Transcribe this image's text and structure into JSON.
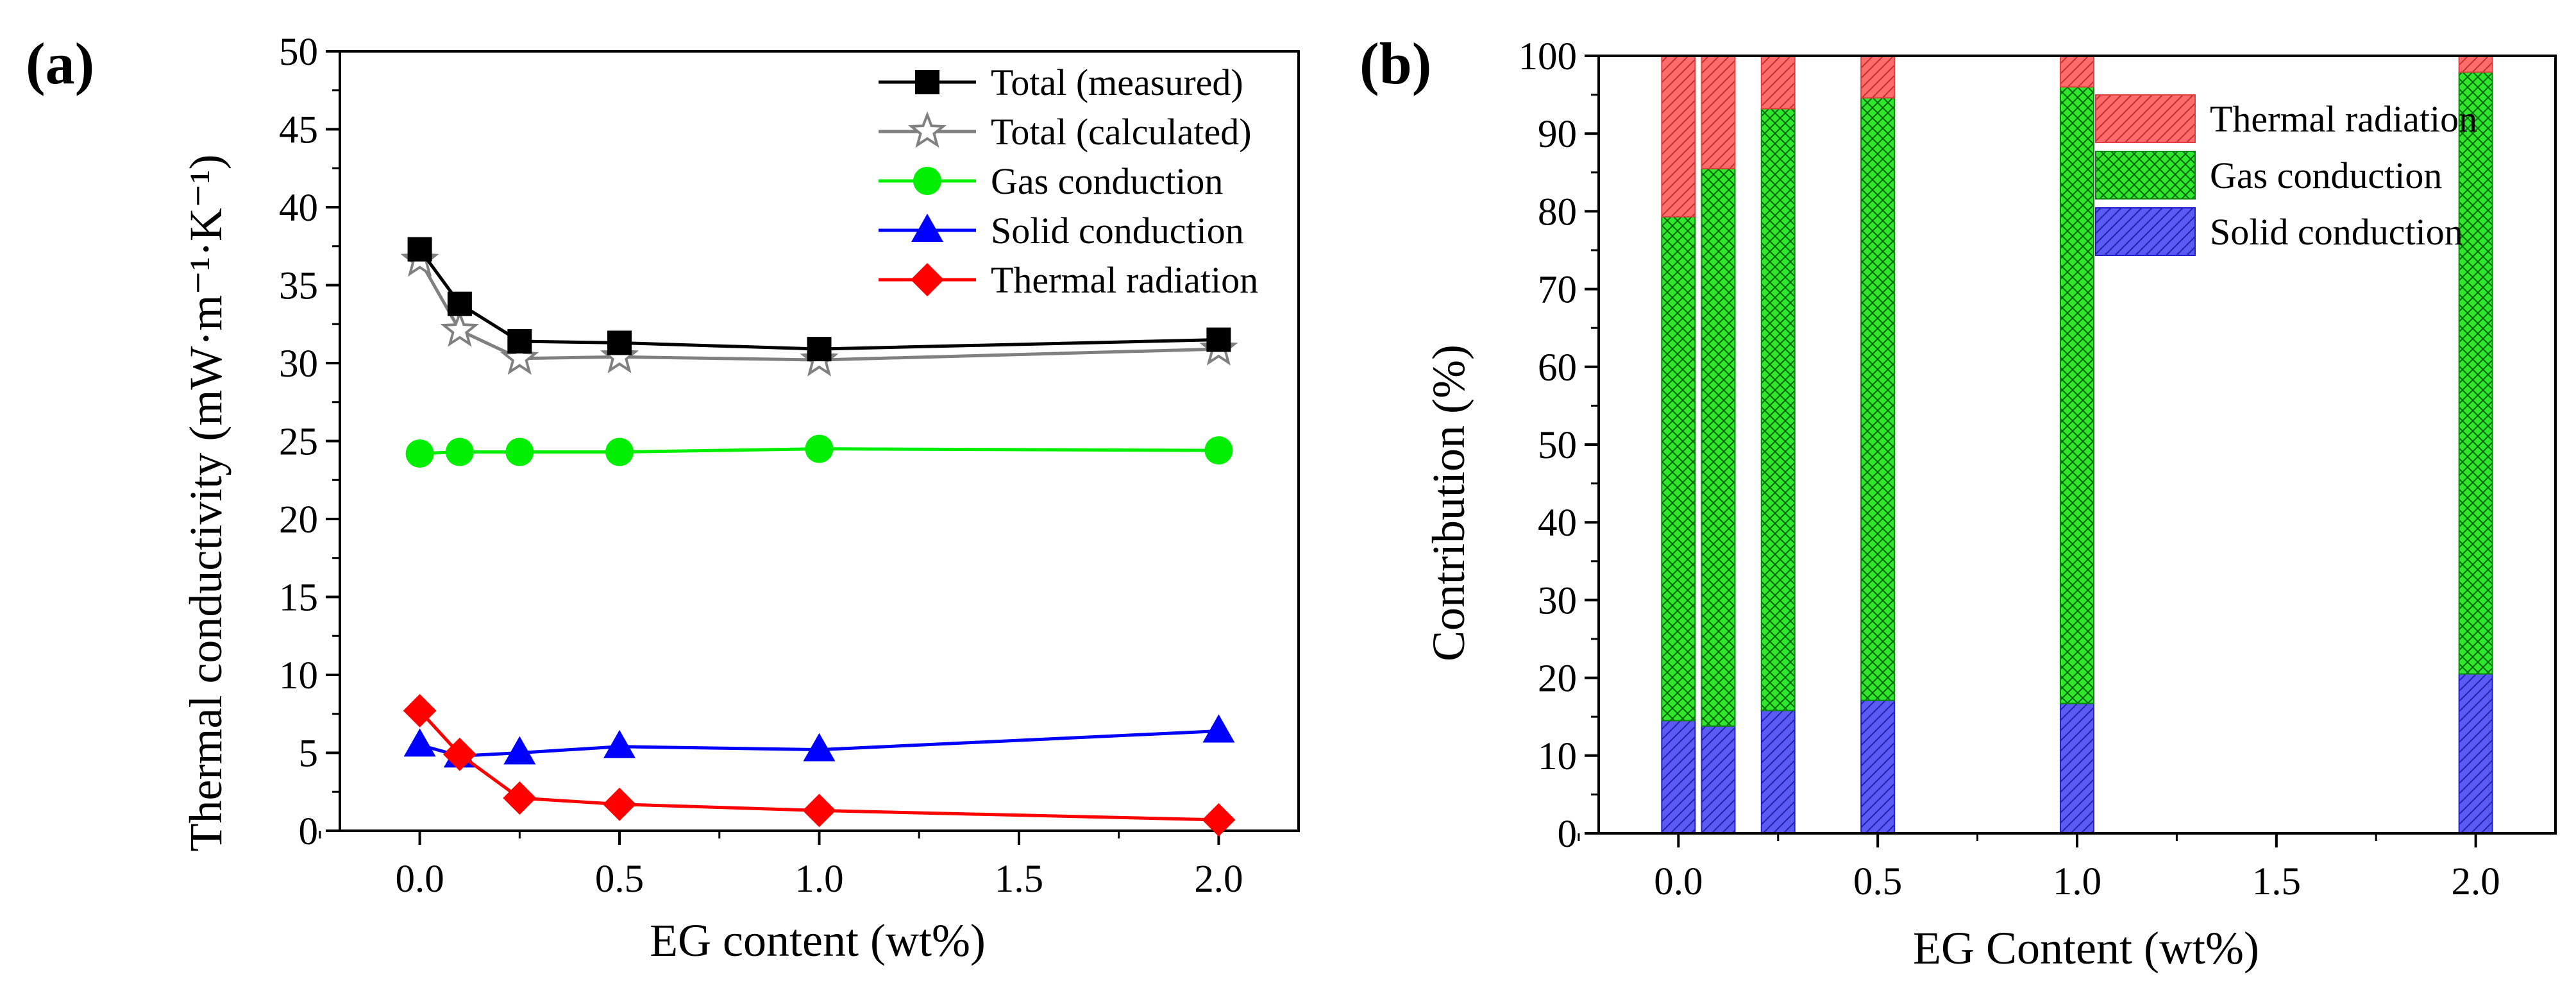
{
  "chart_data": [
    {
      "panel_label": "(a)",
      "type": "line",
      "xlabel": "EG content (wt%)",
      "ylabel": "Thermal conductivity (mW·m⁻¹·K⁻¹)",
      "xlim": [
        -0.2,
        2.2
      ],
      "ylim": [
        0,
        50
      ],
      "xticks": [
        "0.0",
        "0.5",
        "1.0",
        "1.5",
        "2.0"
      ],
      "xtick_values": [
        0,
        0.5,
        1.0,
        1.5,
        2.0
      ],
      "yticks": [
        "0",
        "5",
        "10",
        "15",
        "20",
        "25",
        "30",
        "35",
        "40",
        "45",
        "50"
      ],
      "ytick_values": [
        0,
        5,
        10,
        15,
        20,
        25,
        30,
        35,
        40,
        45,
        50
      ],
      "legend_position": "top-right",
      "x": [
        0,
        0.1,
        0.25,
        0.5,
        1.0,
        2.0
      ],
      "series": [
        {
          "name": "Total (measured)",
          "marker": "square",
          "color": "#000000",
          "values": [
            37.3,
            33.8,
            31.4,
            31.3,
            30.9,
            31.5
          ]
        },
        {
          "name": "Total (calculated)",
          "marker": "star",
          "color": "#808080",
          "values": [
            36.6,
            32.1,
            30.3,
            30.4,
            30.2,
            30.9
          ]
        },
        {
          "name": "Gas conduction",
          "marker": "circle",
          "color": "#00ee00",
          "values": [
            24.2,
            24.3,
            24.3,
            24.3,
            24.5,
            24.4
          ]
        },
        {
          "name": "Solid conduction",
          "marker": "triangle",
          "color": "#0000ff",
          "values": [
            5.5,
            4.8,
            5.0,
            5.4,
            5.2,
            6.4
          ]
        },
        {
          "name": "Thermal radiation",
          "marker": "diamond",
          "color": "#ff0000",
          "values": [
            7.7,
            4.9,
            2.1,
            1.7,
            1.3,
            0.7
          ]
        }
      ]
    },
    {
      "panel_label": "(b)",
      "type": "bar",
      "stacked": true,
      "xlabel": "EG Content (wt%)",
      "ylabel": "Contribution (%)",
      "xlim": [
        -0.2,
        2.2
      ],
      "ylim": [
        0,
        100
      ],
      "xticks": [
        "0.0",
        "0.5",
        "1.0",
        "1.5",
        "2.0"
      ],
      "xtick_values": [
        0,
        0.5,
        1.0,
        1.5,
        2.0
      ],
      "yticks": [
        "0",
        "10",
        "20",
        "30",
        "40",
        "50",
        "60",
        "70",
        "80",
        "90",
        "100"
      ],
      "ytick_values": [
        0,
        10,
        20,
        30,
        40,
        50,
        60,
        70,
        80,
        90,
        100
      ],
      "legend_position": "top-right",
      "x": [
        0,
        0.1,
        0.25,
        0.5,
        1.0,
        2.0
      ],
      "series": [
        {
          "name": "Solid conduction",
          "color": "#5a5af5",
          "hatch": "diagonal",
          "values": [
            14.5,
            13.8,
            15.8,
            17.1,
            16.7,
            20.5
          ]
        },
        {
          "name": "Gas conduction",
          "color": "#2ee82e",
          "hatch": "crosshatch",
          "values": [
            64.8,
            71.7,
            77.4,
            77.5,
            79.3,
            77.4
          ]
        },
        {
          "name": "Thermal radiation",
          "color": "#ff6c6c",
          "hatch": "diagonal",
          "values": [
            20.7,
            14.5,
            6.8,
            5.4,
            4.0,
            2.1
          ]
        }
      ],
      "legend_order": [
        "Thermal radiation",
        "Gas conduction",
        "Solid conduction"
      ]
    }
  ]
}
